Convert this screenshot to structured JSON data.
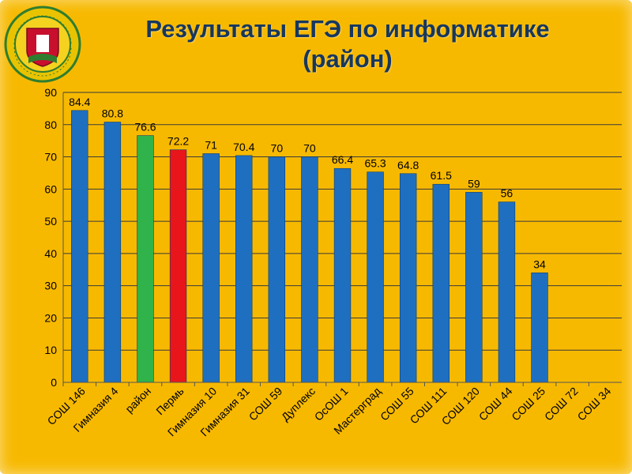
{
  "title_lines": [
    "Результаты ЕГЭ по информатике",
    "(район)"
  ],
  "emblem_text": "Администрация города Перми · Департамент образования",
  "chart_data": {
    "type": "bar",
    "categories": [
      "СОШ 146",
      "Гимназия 4",
      "район",
      "Пермь",
      "Гимназия 10",
      "Гимназия 31",
      "СОШ 59",
      "Дуплекс",
      "ОсОШ 1",
      "Мастерград",
      "СОШ 55",
      "СОШ 111",
      "СОШ 120",
      "СОШ 44",
      "СОШ 25",
      "СОШ 72",
      "СОШ 34"
    ],
    "values": [
      84.4,
      80.8,
      76.6,
      72.2,
      71,
      70.4,
      70,
      70,
      66.4,
      65.3,
      64.8,
      61.5,
      59,
      56,
      34,
      null,
      null
    ],
    "data_labels": [
      "84.4",
      "80.8",
      "76.6",
      "72.2",
      "71",
      "70.4",
      "70",
      "70",
      "66.4",
      "65.3",
      "64.8",
      "61.5",
      "59",
      "56",
      "34",
      "",
      ""
    ],
    "bar_colors": [
      "#1f6fc0",
      "#1f6fc0",
      "#2fb34a",
      "#e8151b",
      "#1f6fc0",
      "#1f6fc0",
      "#1f6fc0",
      "#1f6fc0",
      "#1f6fc0",
      "#1f6fc0",
      "#1f6fc0",
      "#1f6fc0",
      "#1f6fc0",
      "#1f6fc0",
      "#1f6fc0",
      "#1f6fc0",
      "#1f6fc0"
    ],
    "yticks": [
      0,
      10,
      20,
      30,
      40,
      50,
      60,
      70,
      80,
      90
    ],
    "ylim": [
      0,
      90
    ],
    "grid": true,
    "xlabel": "",
    "ylabel": ""
  },
  "colors": {
    "background": "#f7b900",
    "title": "#17375e",
    "gridline": "#3a3a3a"
  }
}
